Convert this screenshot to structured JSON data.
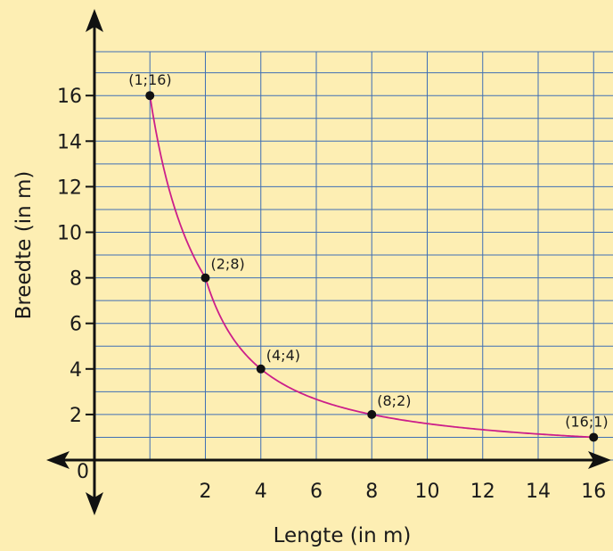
{
  "chart_data": {
    "type": "line",
    "xlabel": "Lengte (in m)",
    "ylabel": "Breedte (in m)",
    "origin_label": "0",
    "x_ticks": [
      2,
      4,
      6,
      8,
      10,
      12,
      14,
      16
    ],
    "x_tick_labels": [
      "2",
      "4",
      "6",
      "8",
      "10",
      "12",
      "14",
      "16"
    ],
    "y_ticks": [
      2,
      4,
      6,
      8,
      10,
      12,
      14,
      16
    ],
    "y_tick_labels": [
      "2",
      "4",
      "6",
      "8",
      "10",
      "12",
      "14",
      "16"
    ],
    "x_grid_positions": [
      "0",
      "1",
      "2",
      "4",
      "6",
      "8",
      "10",
      "12",
      "14",
      "16",
      "18"
    ],
    "grid": true,
    "series": [
      {
        "x": [
          1,
          2,
          4,
          8,
          16
        ],
        "y": [
          16,
          8,
          4,
          2,
          1
        ],
        "curve": "y = 16 / x",
        "color": "#cc1f8a"
      }
    ],
    "point_labels": [
      "(1;16)",
      "(2;8)",
      "(4;4)",
      "(8;2)",
      "(16;1)"
    ]
  },
  "colors": {
    "background": "#fdeeb3",
    "plot_background": "#fdeeb3",
    "grid": "#3f6fb4",
    "axis": "#111111",
    "curve": "#cc1f8a",
    "point": "#111111"
  }
}
